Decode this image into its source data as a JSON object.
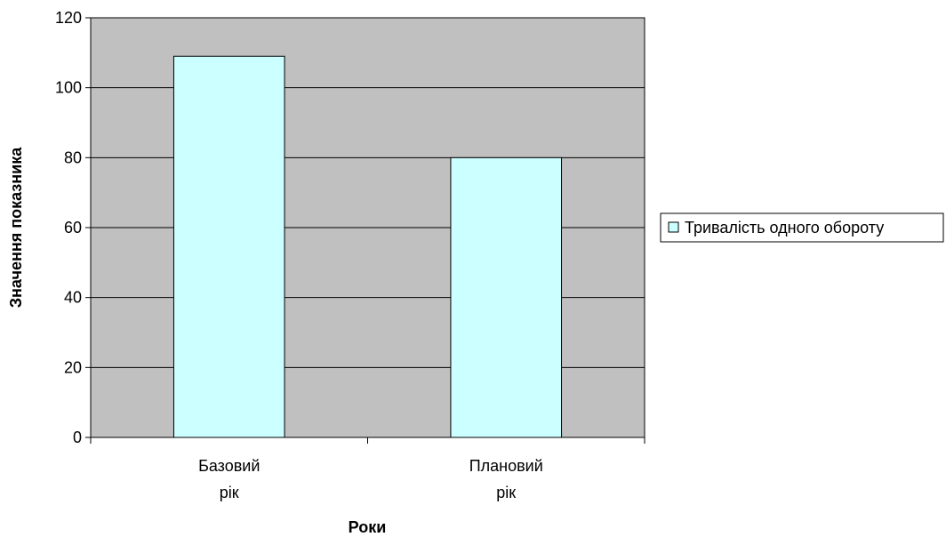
{
  "chart_data": {
    "type": "bar",
    "categories": [
      [
        "Базовий",
        "рік"
      ],
      [
        "Плановий",
        "рік"
      ]
    ],
    "series": [
      {
        "name": "Тривалість одного обороту",
        "values": [
          109,
          80
        ],
        "color": "#ccffff"
      }
    ],
    "title": "",
    "xlabel": "Роки",
    "ylabel": "Значення показника",
    "ylim": [
      0,
      120
    ],
    "yticks": [
      0,
      20,
      40,
      60,
      80,
      100,
      120
    ],
    "grid": true,
    "plot_background": "#c0c0c0",
    "legend_position": "right"
  }
}
